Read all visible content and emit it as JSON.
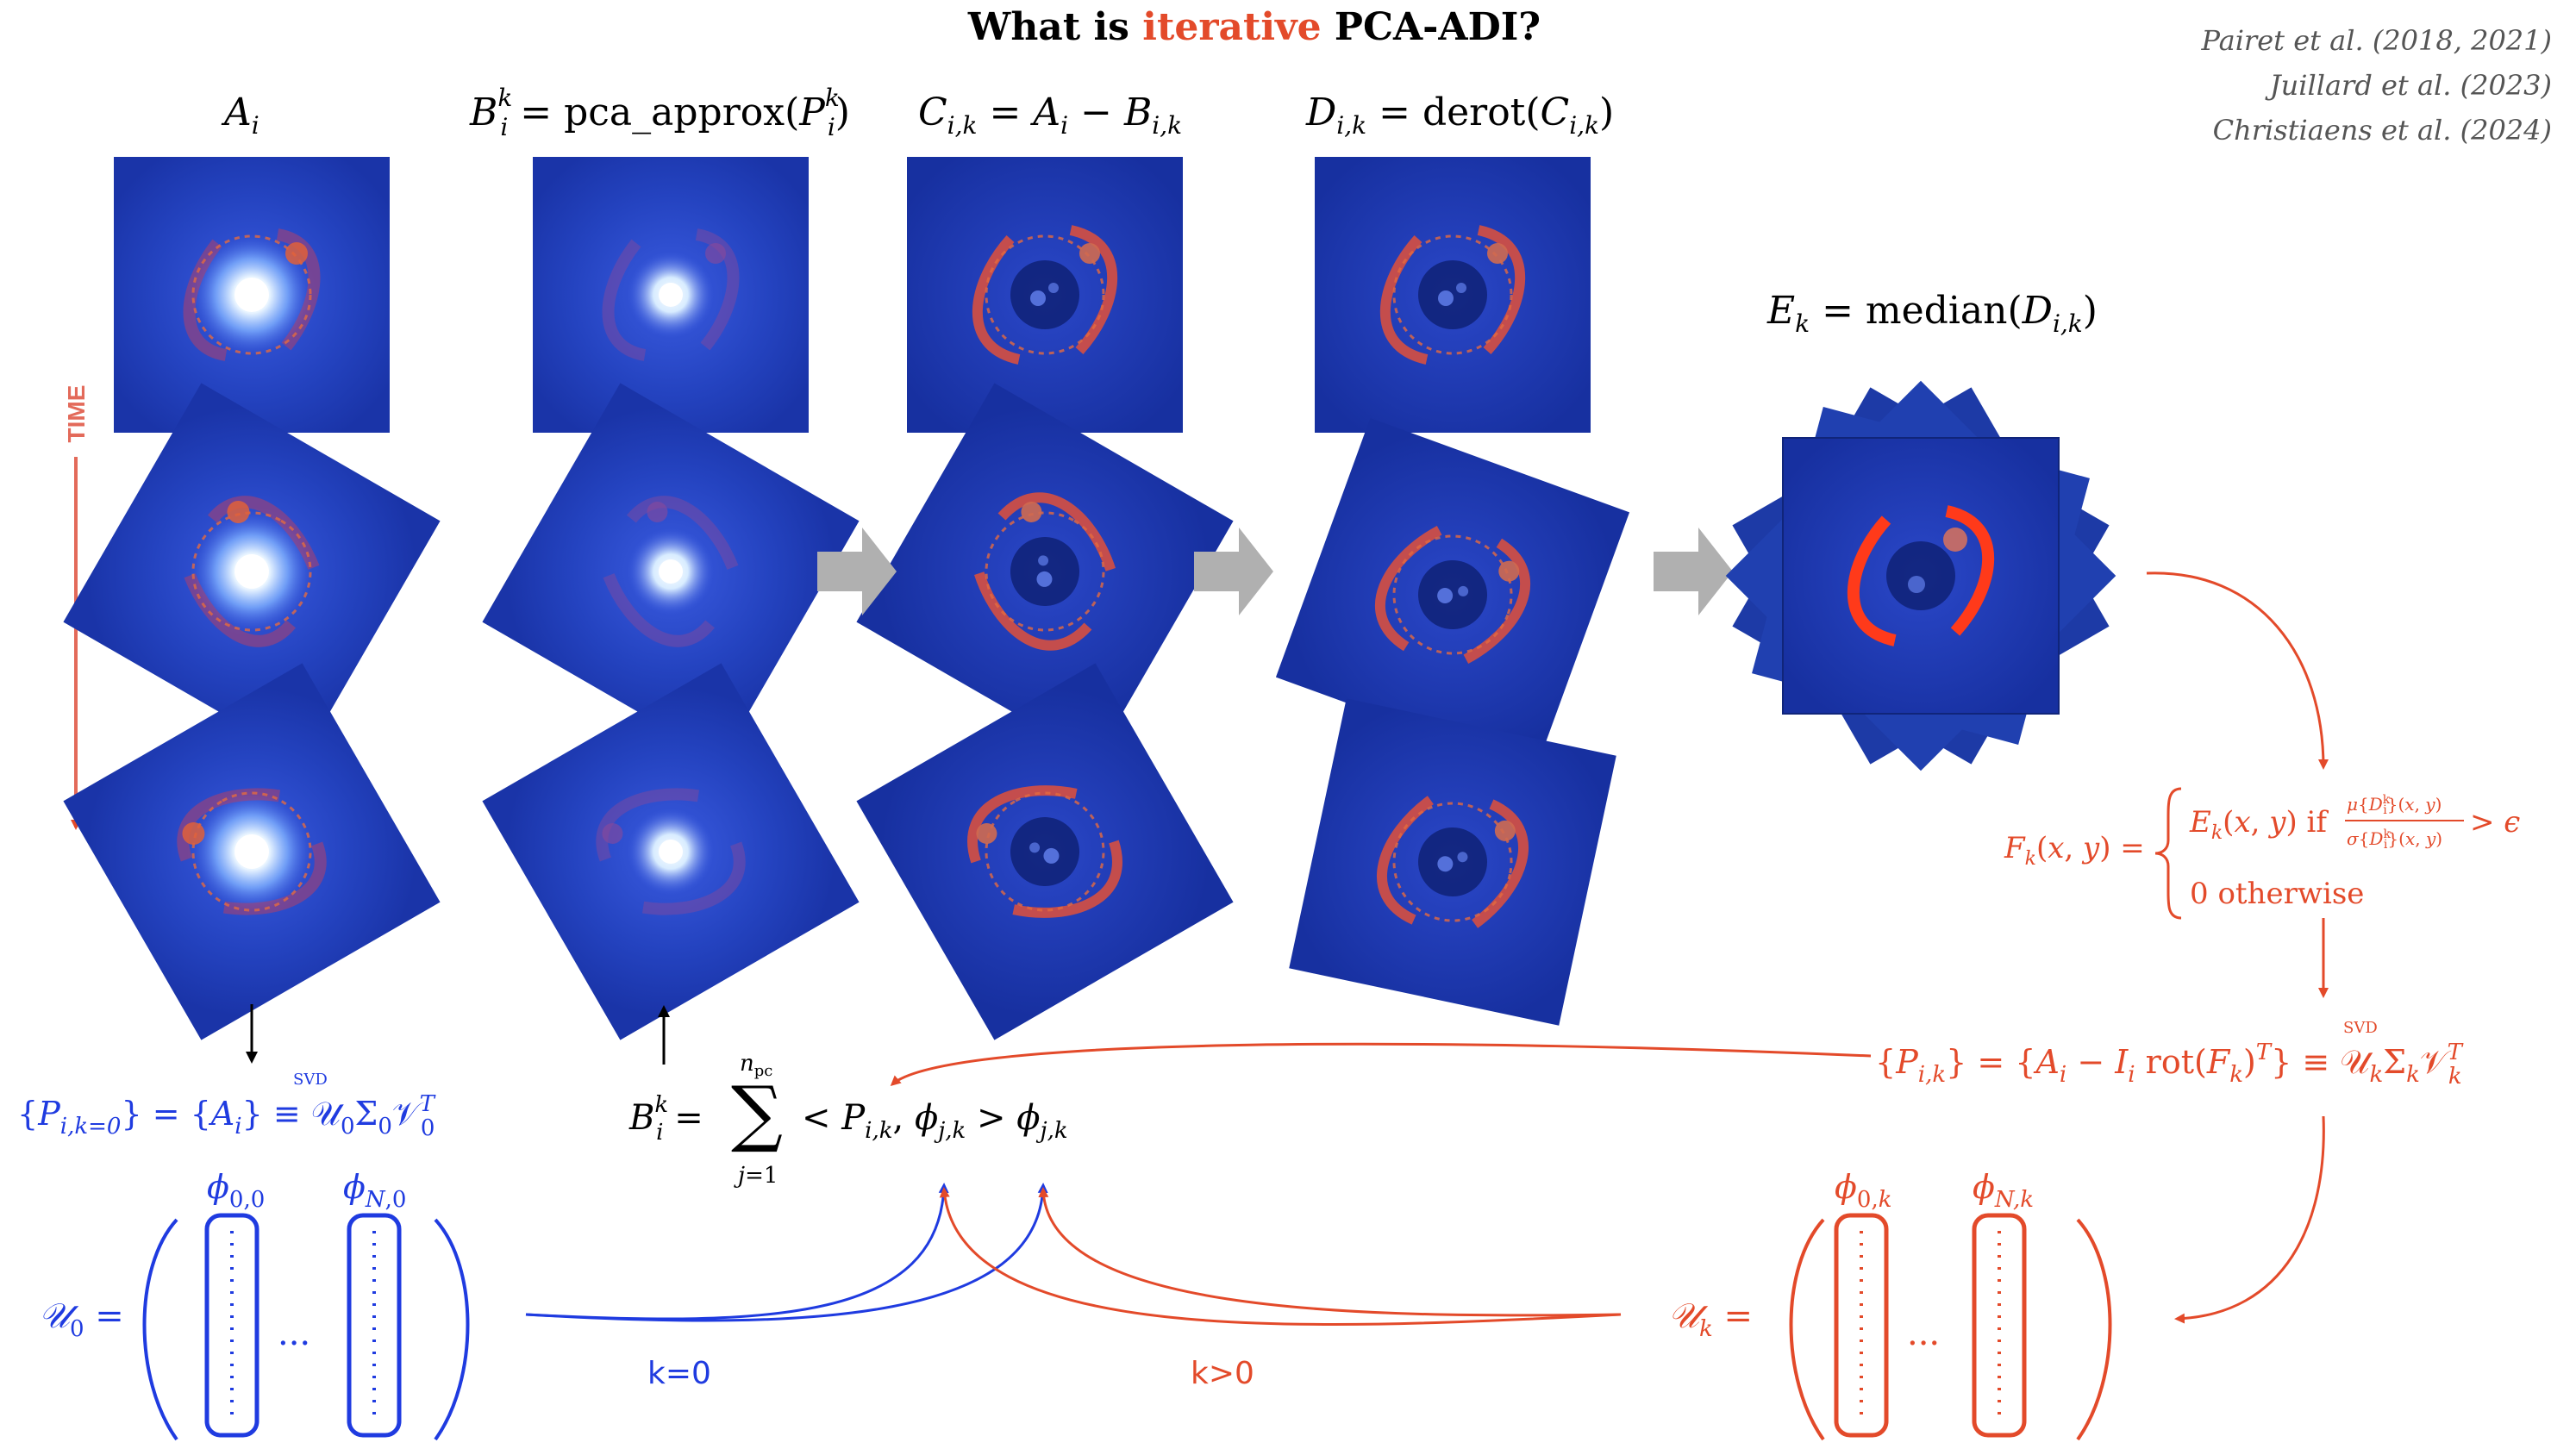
{
  "title": {
    "prefix": "What is ",
    "highlight": "iterative",
    "suffix": " PCA-ADI?"
  },
  "references": [
    "Pairet et al. (2018, 2021)",
    "Juillard et al. (2023)",
    "Christiaens et al. (2024)"
  ],
  "time_label": "TIME",
  "k0_label": "k=0",
  "kpos_label": "k>0",
  "colors": {
    "blue": "#1f3be0",
    "red": "#e34a2a",
    "arrow_gray": "#b0b0b0",
    "frame_blue": "#1d3aa6"
  },
  "icons": [
    "planet-disk-frame",
    "right-arrow-icon",
    "down-arrow-icon",
    "up-arrow-icon"
  ]
}
